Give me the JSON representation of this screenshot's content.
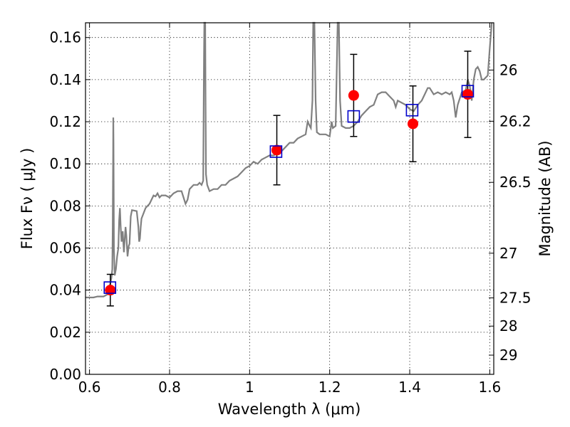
{
  "chart_data": {
    "type": "line",
    "xlabel": "Wavelength  λ (μm)",
    "ylabel": "Flux  Fν ( μJy )",
    "ylabel_right": "Magnitude (AB)",
    "xlim": [
      0.59,
      1.61
    ],
    "ylim": [
      0.0,
      0.167
    ],
    "grid": true,
    "x_ticks": [
      0.6,
      0.8,
      1.0,
      1.2,
      1.4,
      1.6
    ],
    "x_tick_labels": [
      "0.6",
      "0.8",
      "1",
      "1.2",
      "1.4",
      "1.6"
    ],
    "y_ticks": [
      0.0,
      0.02,
      0.04,
      0.06,
      0.08,
      0.1,
      0.12,
      0.14,
      0.16
    ],
    "y_tick_labels": [
      "0.00",
      "0.02",
      "0.04",
      "0.06",
      "0.08",
      "0.10",
      "0.12",
      "0.14",
      "0.16"
    ],
    "right_ticks": [
      {
        "mag": 26,
        "label": "26"
      },
      {
        "mag": 26.2,
        "label": "26.2"
      },
      {
        "mag": 26.5,
        "label": "26.5"
      },
      {
        "mag": 27,
        "label": "27"
      },
      {
        "mag": 27.5,
        "label": "27.5"
      },
      {
        "mag": 28,
        "label": "28"
      },
      {
        "mag": 29,
        "label": "29"
      }
    ],
    "model_spectrum": {
      "color": "#808080",
      "points": [
        [
          0.59,
          0.0365
        ],
        [
          0.61,
          0.0365
        ],
        [
          0.62,
          0.037
        ],
        [
          0.635,
          0.037
        ],
        [
          0.645,
          0.038
        ],
        [
          0.648,
          0.04
        ],
        [
          0.652,
          0.043
        ],
        [
          0.655,
          0.046
        ],
        [
          0.657,
          0.05
        ],
        [
          0.658,
          0.07
        ],
        [
          0.659,
          0.105
        ],
        [
          0.6595,
          0.122
        ],
        [
          0.66,
          0.11
        ],
        [
          0.661,
          0.06
        ],
        [
          0.663,
          0.047
        ],
        [
          0.666,
          0.05
        ],
        [
          0.669,
          0.056
        ],
        [
          0.672,
          0.06
        ],
        [
          0.674,
          0.073
        ],
        [
          0.676,
          0.079
        ],
        [
          0.678,
          0.07
        ],
        [
          0.68,
          0.063
        ],
        [
          0.683,
          0.068
        ],
        [
          0.686,
          0.058
        ],
        [
          0.689,
          0.067
        ],
        [
          0.69,
          0.07
        ],
        [
          0.692,
          0.066
        ],
        [
          0.695,
          0.056
        ],
        [
          0.698,
          0.061
        ],
        [
          0.7,
          0.062
        ],
        [
          0.703,
          0.075
        ],
        [
          0.706,
          0.078
        ],
        [
          0.712,
          0.0778
        ],
        [
          0.718,
          0.0775
        ],
        [
          0.72,
          0.074
        ],
        [
          0.722,
          0.07
        ],
        [
          0.724,
          0.063
        ],
        [
          0.726,
          0.0645
        ],
        [
          0.728,
          0.07
        ],
        [
          0.73,
          0.074
        ],
        [
          0.74,
          0.079
        ],
        [
          0.75,
          0.081
        ],
        [
          0.755,
          0.083
        ],
        [
          0.76,
          0.085
        ],
        [
          0.765,
          0.0845
        ],
        [
          0.77,
          0.086
        ],
        [
          0.775,
          0.084
        ],
        [
          0.78,
          0.085
        ],
        [
          0.79,
          0.085
        ],
        [
          0.8,
          0.084
        ],
        [
          0.81,
          0.086
        ],
        [
          0.82,
          0.087
        ],
        [
          0.83,
          0.087
        ],
        [
          0.835,
          0.084
        ],
        [
          0.84,
          0.081
        ],
        [
          0.845,
          0.083
        ],
        [
          0.85,
          0.088
        ],
        [
          0.86,
          0.09
        ],
        [
          0.87,
          0.09
        ],
        [
          0.875,
          0.091
        ],
        [
          0.88,
          0.09
        ],
        [
          0.884,
          0.092
        ],
        [
          0.886,
          0.15
        ],
        [
          0.887,
          0.168
        ],
        [
          0.889,
          0.168
        ],
        [
          0.89,
          0.13
        ],
        [
          0.891,
          0.095
        ],
        [
          0.894,
          0.09
        ],
        [
          0.9,
          0.087
        ],
        [
          0.91,
          0.088
        ],
        [
          0.92,
          0.088
        ],
        [
          0.93,
          0.09
        ],
        [
          0.94,
          0.09
        ],
        [
          0.95,
          0.092
        ],
        [
          0.96,
          0.093
        ],
        [
          0.97,
          0.094
        ],
        [
          0.98,
          0.096
        ],
        [
          0.99,
          0.098
        ],
        [
          1.0,
          0.099
        ],
        [
          1.01,
          0.101
        ],
        [
          1.02,
          0.1
        ],
        [
          1.03,
          0.102
        ],
        [
          1.04,
          0.103
        ],
        [
          1.05,
          0.104
        ],
        [
          1.06,
          0.104
        ],
        [
          1.07,
          0.105
        ],
        [
          1.08,
          0.106
        ],
        [
          1.09,
          0.108
        ],
        [
          1.1,
          0.11
        ],
        [
          1.11,
          0.11
        ],
        [
          1.12,
          0.112
        ],
        [
          1.13,
          0.113
        ],
        [
          1.14,
          0.114
        ],
        [
          1.145,
          0.12
        ],
        [
          1.15,
          0.118
        ],
        [
          1.153,
          0.117
        ],
        [
          1.157,
          0.13
        ],
        [
          1.159,
          0.168
        ],
        [
          1.162,
          0.168
        ],
        [
          1.165,
          0.13
        ],
        [
          1.168,
          0.115
        ],
        [
          1.175,
          0.114
        ],
        [
          1.19,
          0.114
        ],
        [
          1.2,
          0.113
        ],
        [
          1.205,
          0.12
        ],
        [
          1.208,
          0.117
        ],
        [
          1.215,
          0.118
        ],
        [
          1.22,
          0.168
        ],
        [
          1.223,
          0.168
        ],
        [
          1.226,
          0.13
        ],
        [
          1.23,
          0.118
        ],
        [
          1.24,
          0.117
        ],
        [
          1.25,
          0.117
        ],
        [
          1.26,
          0.118
        ],
        [
          1.27,
          0.12
        ],
        [
          1.28,
          0.123
        ],
        [
          1.29,
          0.125
        ],
        [
          1.3,
          0.127
        ],
        [
          1.31,
          0.128
        ],
        [
          1.32,
          0.133
        ],
        [
          1.33,
          0.134
        ],
        [
          1.34,
          0.134
        ],
        [
          1.35,
          0.132
        ],
        [
          1.36,
          0.13
        ],
        [
          1.365,
          0.127
        ],
        [
          1.37,
          0.13
        ],
        [
          1.38,
          0.129
        ],
        [
          1.39,
          0.128
        ],
        [
          1.4,
          0.126
        ],
        [
          1.41,
          0.125
        ],
        [
          1.42,
          0.128
        ],
        [
          1.43,
          0.13
        ],
        [
          1.44,
          0.134
        ],
        [
          1.445,
          0.136
        ],
        [
          1.45,
          0.136
        ],
        [
          1.46,
          0.133
        ],
        [
          1.47,
          0.134
        ],
        [
          1.48,
          0.133
        ],
        [
          1.49,
          0.134
        ],
        [
          1.5,
          0.133
        ],
        [
          1.505,
          0.134
        ],
        [
          1.51,
          0.13
        ],
        [
          1.515,
          0.122
        ],
        [
          1.52,
          0.128
        ],
        [
          1.53,
          0.134
        ],
        [
          1.54,
          0.135
        ],
        [
          1.545,
          0.14
        ],
        [
          1.55,
          0.137
        ],
        [
          1.555,
          0.13
        ],
        [
          1.56,
          0.14
        ],
        [
          1.565,
          0.145
        ],
        [
          1.57,
          0.146
        ],
        [
          1.575,
          0.144
        ],
        [
          1.58,
          0.14
        ],
        [
          1.585,
          0.14
        ],
        [
          1.59,
          0.141
        ],
        [
          1.595,
          0.142
        ],
        [
          1.6,
          0.155
        ],
        [
          1.605,
          0.167
        ]
      ]
    },
    "observed": {
      "color": "#ff0000",
      "points": [
        {
          "x": 0.652,
          "y": 0.04,
          "err": 0.0075
        },
        {
          "x": 1.068,
          "y": 0.1065,
          "err": 0.0165
        },
        {
          "x": 1.26,
          "y": 0.1325,
          "err": 0.0195
        },
        {
          "x": 1.408,
          "y": 0.119,
          "err": 0.018
        },
        {
          "x": 1.545,
          "y": 0.133,
          "err": 0.0205
        }
      ]
    },
    "synthetic": {
      "color": "#0000cc",
      "points": [
        {
          "x": 0.651,
          "y": 0.0412
        },
        {
          "x": 1.066,
          "y": 0.1058
        },
        {
          "x": 1.26,
          "y": 0.1225
        },
        {
          "x": 1.406,
          "y": 0.1255
        },
        {
          "x": 1.545,
          "y": 0.1345
        }
      ]
    }
  }
}
